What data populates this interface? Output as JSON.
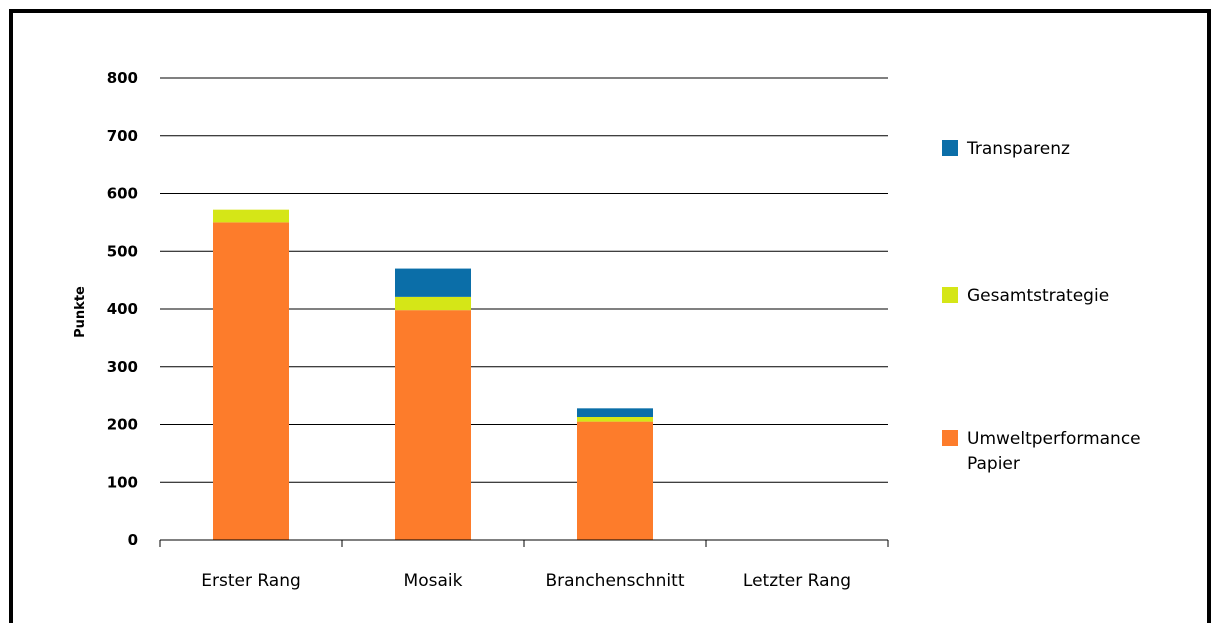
{
  "chart_data": {
    "type": "bar",
    "stacked": true,
    "title": "",
    "xlabel": "",
    "ylabel": "Punkte",
    "ylim": [
      0,
      800
    ],
    "yticks": [
      0,
      100,
      200,
      300,
      400,
      500,
      600,
      700,
      800
    ],
    "grid": true,
    "legend_position": "right",
    "categories": [
      "Erster Rang",
      "Mosaik",
      "Branchenschnitt",
      "Letzter Rang"
    ],
    "series": [
      {
        "name": "Umweltperformance Papier",
        "name_lines": [
          "Umweltperformance",
          "Papier"
        ],
        "color": "#fd7c2b",
        "values": [
          550,
          398,
          205,
          0
        ]
      },
      {
        "name": "Gesamtstrategie",
        "name_lines": [
          "Gesamtstrategie"
        ],
        "color": "#d5e617",
        "values": [
          22,
          23,
          8,
          0
        ]
      },
      {
        "name": "Transparenz",
        "name_lines": [
          "Transparenz"
        ],
        "color": "#0b6ea8",
        "values": [
          0,
          49,
          15,
          0
        ]
      }
    ]
  }
}
